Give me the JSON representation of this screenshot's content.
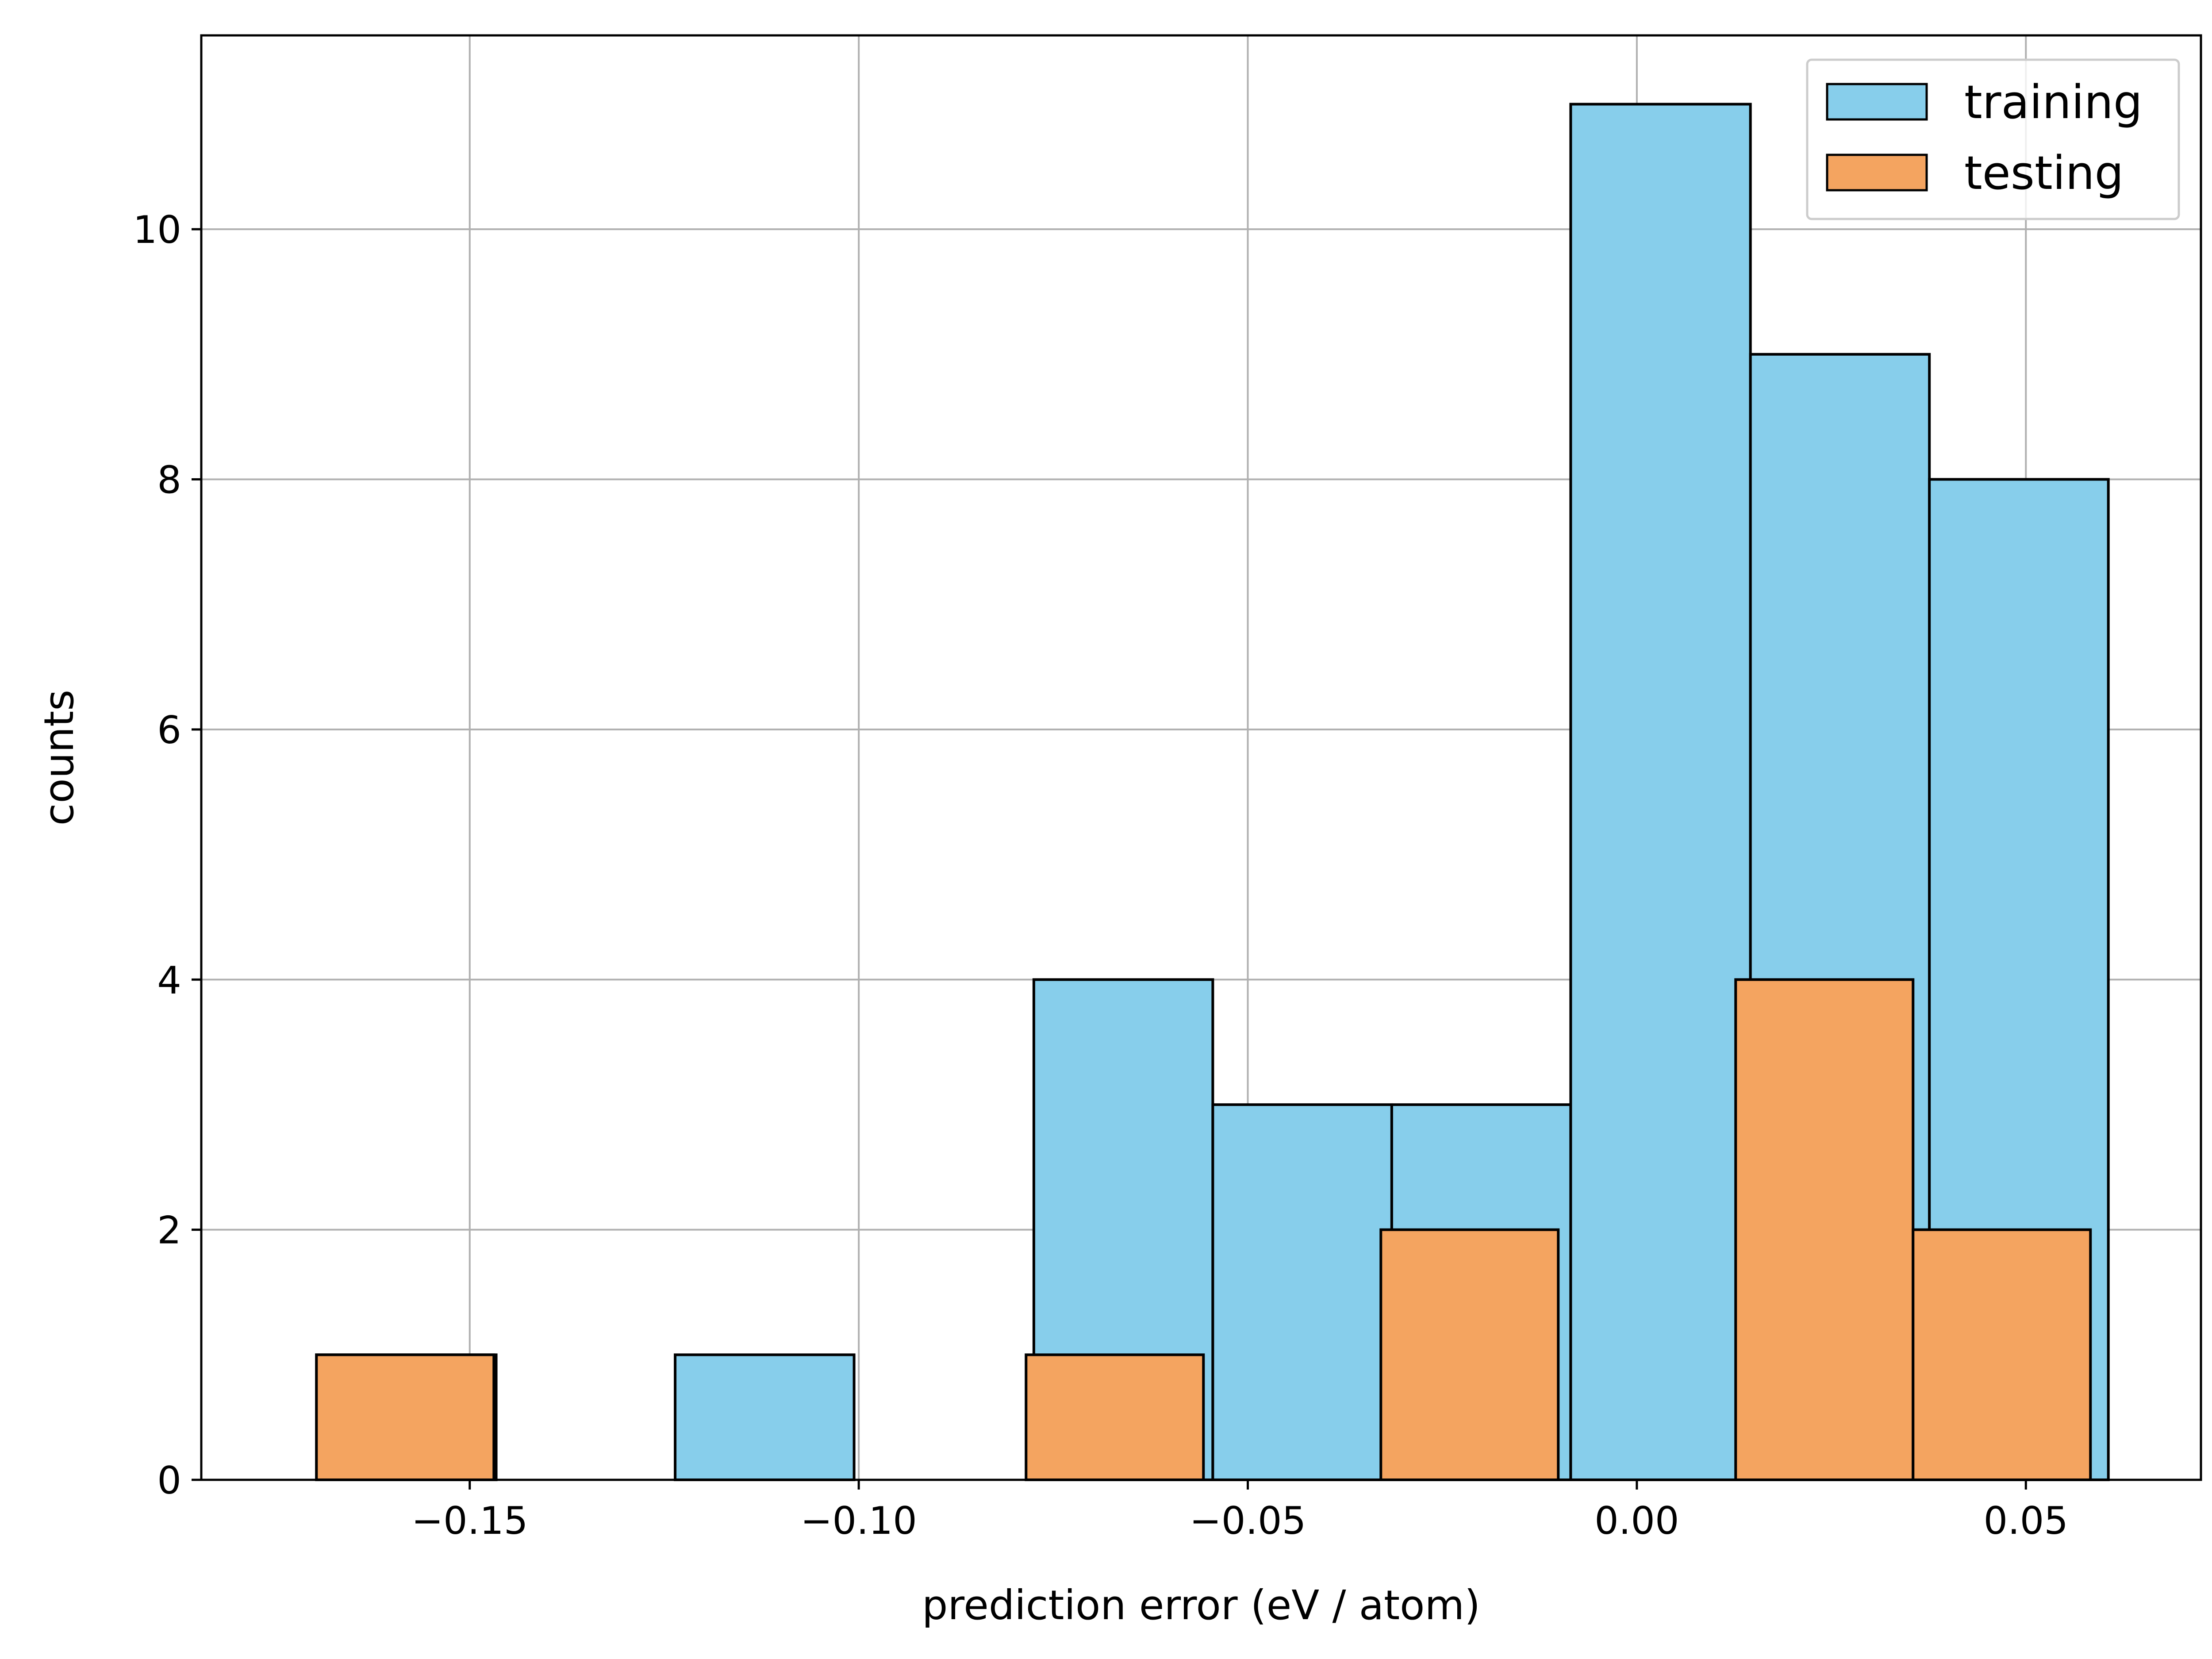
{
  "chart_data": {
    "type": "bar",
    "title": "",
    "xlabel": "prediction error (eV / atom)",
    "ylabel": "counts",
    "xlim": [
      -0.1845,
      0.0725
    ],
    "ylim": [
      0,
      11.55
    ],
    "xticks": [
      -0.15,
      -0.1,
      -0.05,
      0.0,
      0.05
    ],
    "xtick_labels": [
      "−0.15",
      "−0.10",
      "−0.05",
      "0.00",
      "0.05"
    ],
    "yticks": [
      0,
      2,
      4,
      6,
      8,
      10
    ],
    "ytick_labels": [
      "0",
      "2",
      "4",
      "6",
      "8",
      "10"
    ],
    "grid": true,
    "legend_position": "top-right",
    "series": [
      {
        "name": "training",
        "color": "#87ceeb",
        "bins": [
          {
            "x0": -0.1697,
            "x1": -0.1466,
            "count": 1
          },
          {
            "x0": -0.1466,
            "x1": -0.1236,
            "count": 0
          },
          {
            "x0": -0.1236,
            "x1": -0.1006,
            "count": 1
          },
          {
            "x0": -0.1006,
            "x1": -0.0775,
            "count": 0
          },
          {
            "x0": -0.0775,
            "x1": -0.0545,
            "count": 4
          },
          {
            "x0": -0.0545,
            "x1": -0.0315,
            "count": 3
          },
          {
            "x0": -0.0315,
            "x1": -0.0085,
            "count": 3
          },
          {
            "x0": -0.0085,
            "x1": 0.0146,
            "count": 11
          },
          {
            "x0": 0.0146,
            "x1": 0.0376,
            "count": 9
          },
          {
            "x0": 0.0376,
            "x1": 0.0606,
            "count": 8
          }
        ]
      },
      {
        "name": "testing",
        "color": "#f4a460",
        "bins": [
          {
            "x0": -0.1697,
            "x1": -0.1469,
            "count": 1
          },
          {
            "x0": -0.1469,
            "x1": -0.1241,
            "count": 0
          },
          {
            "x0": -0.1241,
            "x1": -0.1013,
            "count": 0
          },
          {
            "x0": -0.1013,
            "x1": -0.0785,
            "count": 0
          },
          {
            "x0": -0.0785,
            "x1": -0.0557,
            "count": 1
          },
          {
            "x0": -0.0557,
            "x1": -0.0329,
            "count": 0
          },
          {
            "x0": -0.0329,
            "x1": -0.0101,
            "count": 2
          },
          {
            "x0": -0.0101,
            "x1": 0.0127,
            "count": 0
          },
          {
            "x0": 0.0127,
            "x1": 0.0355,
            "count": 4
          },
          {
            "x0": 0.0355,
            "x1": 0.0583,
            "count": 2
          }
        ]
      }
    ]
  }
}
